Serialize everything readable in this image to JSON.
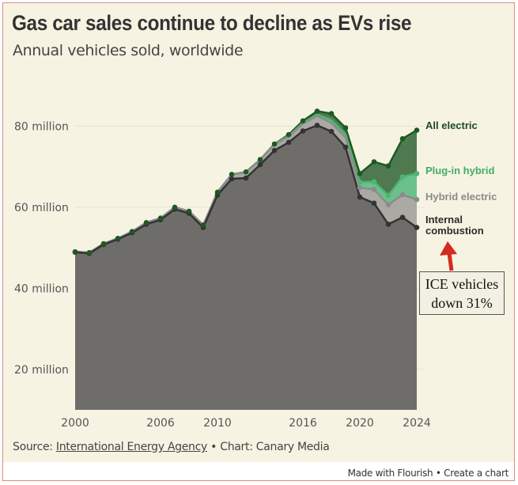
{
  "chart_data": {
    "type": "area",
    "stacked": true,
    "title": "Gas car sales continue to decline as EVs rise",
    "subtitle": "Annual vehicles sold, worldwide",
    "x": [
      2000,
      2001,
      2002,
      2003,
      2004,
      2005,
      2006,
      2007,
      2008,
      2009,
      2010,
      2011,
      2012,
      2013,
      2014,
      2015,
      2016,
      2017,
      2018,
      2019,
      2020,
      2021,
      2022,
      2023,
      2024
    ],
    "x_ticks": [
      "2000",
      "2006",
      "2010",
      "2016",
      "2020",
      "2024"
    ],
    "y_ticks": [
      {
        "value": 20,
        "label": "20 million"
      },
      {
        "value": 40,
        "label": "40 million"
      },
      {
        "value": 60,
        "label": "60 million"
      },
      {
        "value": 80,
        "label": "80 million"
      }
    ],
    "ylim": [
      10,
      92
    ],
    "xlabel": "",
    "ylabel": "",
    "grid": true,
    "legend": "direct labels at right end",
    "series": [
      {
        "name": "Internal combustion",
        "color": "#6f6d69",
        "line": "#333333",
        "values": [
          48.9,
          48.6,
          50.8,
          52.1,
          53.7,
          55.8,
          56.9,
          59.5,
          58.5,
          55.0,
          63.0,
          67.0,
          67.2,
          70.5,
          74.0,
          76.0,
          78.8,
          80.2,
          78.7,
          74.8,
          62.5,
          61.0,
          55.8,
          57.5,
          55.0
        ]
      },
      {
        "name": "Hybrid electric",
        "color": "#aaa9a4",
        "line": "#8c8c8c",
        "values": [
          0.1,
          0.2,
          0.2,
          0.2,
          0.3,
          0.4,
          0.4,
          0.5,
          0.5,
          0.6,
          0.7,
          1.1,
          1.4,
          1.2,
          1.5,
          1.4,
          1.8,
          2.3,
          2.1,
          2.4,
          2.3,
          3.4,
          4.8,
          5.6,
          6.9
        ]
      },
      {
        "name": "Plug-in hybrid",
        "color": "#6cc08b",
        "line": "#4db56f",
        "values": [
          0,
          0,
          0,
          0,
          0,
          0,
          0,
          0,
          0,
          0,
          0,
          0,
          0.05,
          0.05,
          0.1,
          0.2,
          0.2,
          0.4,
          0.7,
          0.8,
          1.4,
          1.9,
          2.3,
          4.4,
          6.4
        ]
      },
      {
        "name": "All electric",
        "color": "#4f7a50",
        "line": "#1d5a22",
        "values": [
          0,
          0,
          0,
          0,
          0,
          0,
          0,
          0,
          0,
          0,
          0,
          0,
          0.05,
          0,
          0,
          0.3,
          0.5,
          0.8,
          1.6,
          1.6,
          2.1,
          4.9,
          7.3,
          9.4,
          10.7
        ]
      }
    ],
    "annotation": {
      "text_line1": "ICE vehicles",
      "text_line2": "down 31%",
      "arrow_color": "#d42a1f"
    }
  },
  "label_lines": {
    "internal_1": "Internal",
    "internal_2": "combustion"
  },
  "footer": {
    "source_prefix": "Source: ",
    "source_link": "International Energy Agency",
    "source_suffix": " • Chart: Canary Media",
    "made_with": "Made with Flourish • Create a chart"
  }
}
